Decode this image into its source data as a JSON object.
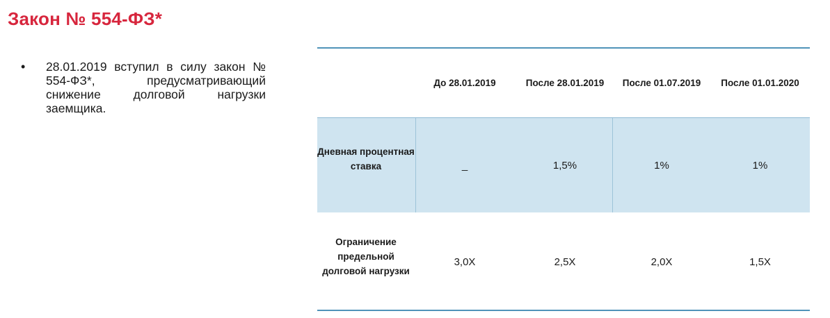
{
  "title": "Закон № 554-ФЗ*",
  "bullet": {
    "marker": "•",
    "text": "28.01.2019 вступил в силу закон № 554-ФЗ*, предусматривающий снижение долговой нагрузки заемщика."
  },
  "table": {
    "columns": [
      "",
      "До 28.01.2019",
      "После 28.01.2019",
      "После 01.07.2019",
      "После 01.01.2020"
    ],
    "rows": [
      {
        "label": "Дневная процентная ставка",
        "values": [
          "_",
          "1,5%",
          "1%",
          "1%"
        ]
      },
      {
        "label": "Ограничение предельной долговой нагрузки",
        "values": [
          "3,0X",
          "2,5X",
          "2,0X",
          "1,5X"
        ]
      }
    ]
  },
  "colors": {
    "title": "#d7263d",
    "highlight_row": "#cfe4f0",
    "rule": "#4f93b8"
  }
}
